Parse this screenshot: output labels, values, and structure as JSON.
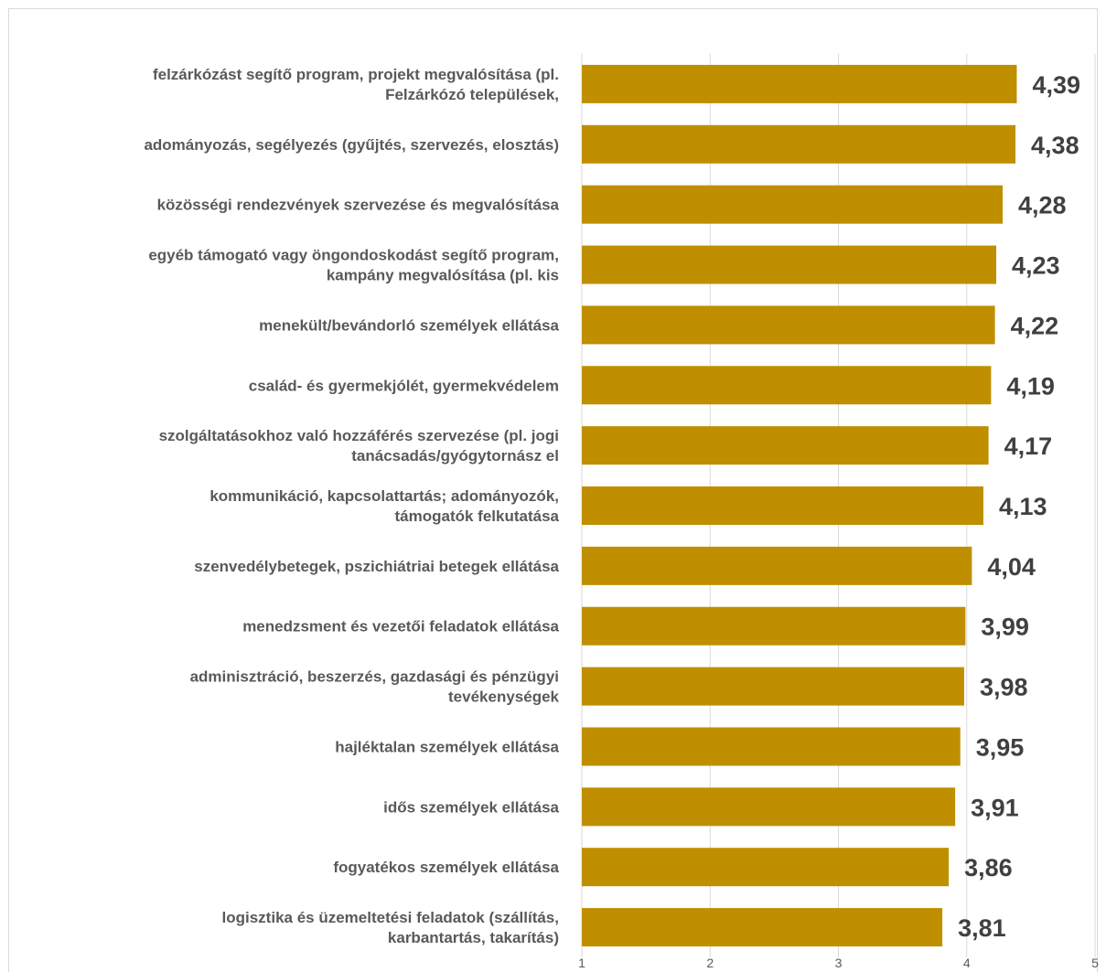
{
  "chart_data": {
    "type": "bar",
    "orientation": "horizontal",
    "categories": [
      [
        "felzárkózást segítő program, projekt megvalósítása (pl.",
        "Felzárkózó települések,"
      ],
      [
        "adományozás, segélyezés (gyűjtés, szervezés, elosztás)"
      ],
      [
        "közösségi rendezvények szervezése és megvalósítása"
      ],
      [
        "egyéb támogató vagy öngondoskodást segítő program,",
        "kampány megvalósítása (pl. kis"
      ],
      [
        "menekült/bevándorló személyek ellátása"
      ],
      [
        "család- és gyermekjólét, gyermekvédelem"
      ],
      [
        "szolgáltatásokhoz való hozzáférés szervezése (pl. jogi",
        "tanácsadás/gyógytornász el"
      ],
      [
        "kommunikáció, kapcsolattartás; adományozók,",
        "támogatók felkutatása"
      ],
      [
        "szenvedélybetegek, pszichiátriai betegek ellátása"
      ],
      [
        "menedzsment és vezetői feladatok ellátása"
      ],
      [
        "adminisztráció, beszerzés, gazdasági és pénzügyi",
        "tevékenységek"
      ],
      [
        "hajléktalan személyek ellátása"
      ],
      [
        "idős személyek ellátása"
      ],
      [
        "fogyatékos személyek ellátása"
      ],
      [
        "logisztika és üzemeltetési feladatok (szállítás,",
        "karbantartás, takarítás)"
      ]
    ],
    "values": [
      4.39,
      4.38,
      4.28,
      4.23,
      4.22,
      4.19,
      4.17,
      4.13,
      4.04,
      3.99,
      3.98,
      3.95,
      3.91,
      3.86,
      3.81
    ],
    "value_labels": [
      "4,39",
      "4,38",
      "4,28",
      "4,23",
      "4,22",
      "4,19",
      "4,17",
      "4,13",
      "4,04",
      "3,99",
      "3,98",
      "3,95",
      "3,91",
      "3,86",
      "3,81"
    ],
    "xlim": [
      1,
      5
    ],
    "xticks": [
      "1",
      "2",
      "3",
      "4",
      "5"
    ],
    "title": "",
    "xlabel": "",
    "ylabel": "",
    "grid": true,
    "legend": "none",
    "bar_color": "#bf8f00",
    "grid_color": "#d9d9d9"
  }
}
